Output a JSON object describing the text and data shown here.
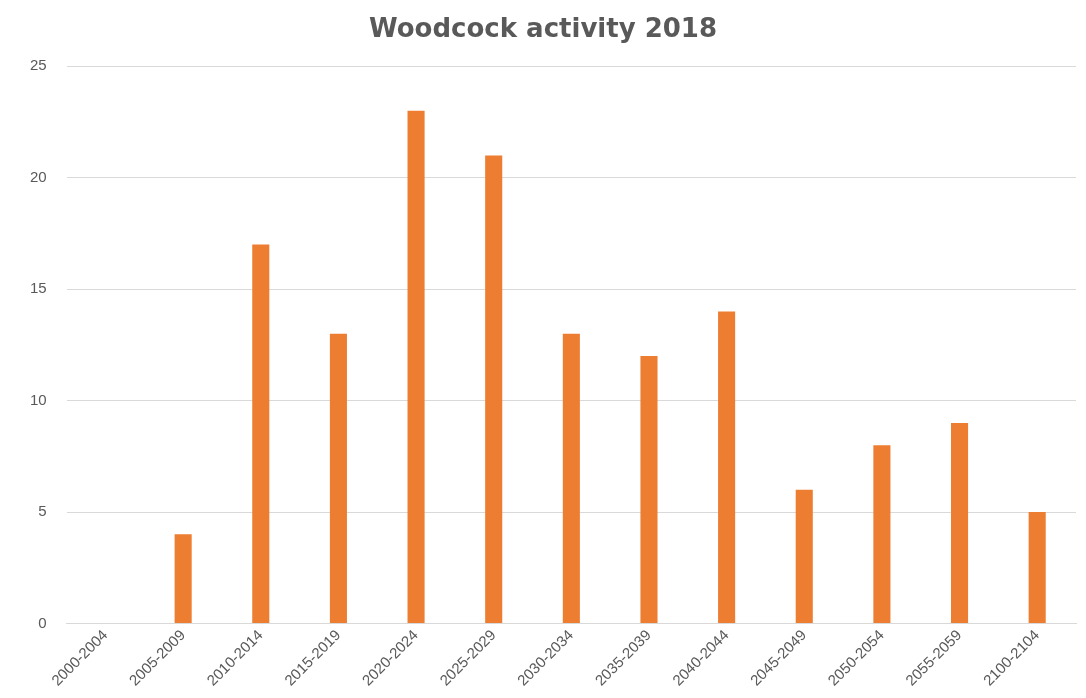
{
  "chart_data": {
    "type": "bar",
    "title": "Woodcock activity 2018",
    "categories": [
      "2000-2004",
      "2005-2009",
      "2010-2014",
      "2015-2019",
      "2020-2024",
      "2025-2029",
      "2030-2034",
      "2035-2039",
      "2040-2044",
      "2045-2049",
      "2050-2054",
      "2055-2059",
      "2100-2104"
    ],
    "values": [
      0,
      4,
      17,
      13,
      23,
      21,
      13,
      12,
      14,
      6,
      8,
      9,
      5
    ],
    "color": "#ed7d31",
    "ylim": [
      0,
      25
    ],
    "yticks": [
      0,
      5,
      10,
      15,
      20,
      25
    ],
    "grid": "y",
    "legend": false
  }
}
